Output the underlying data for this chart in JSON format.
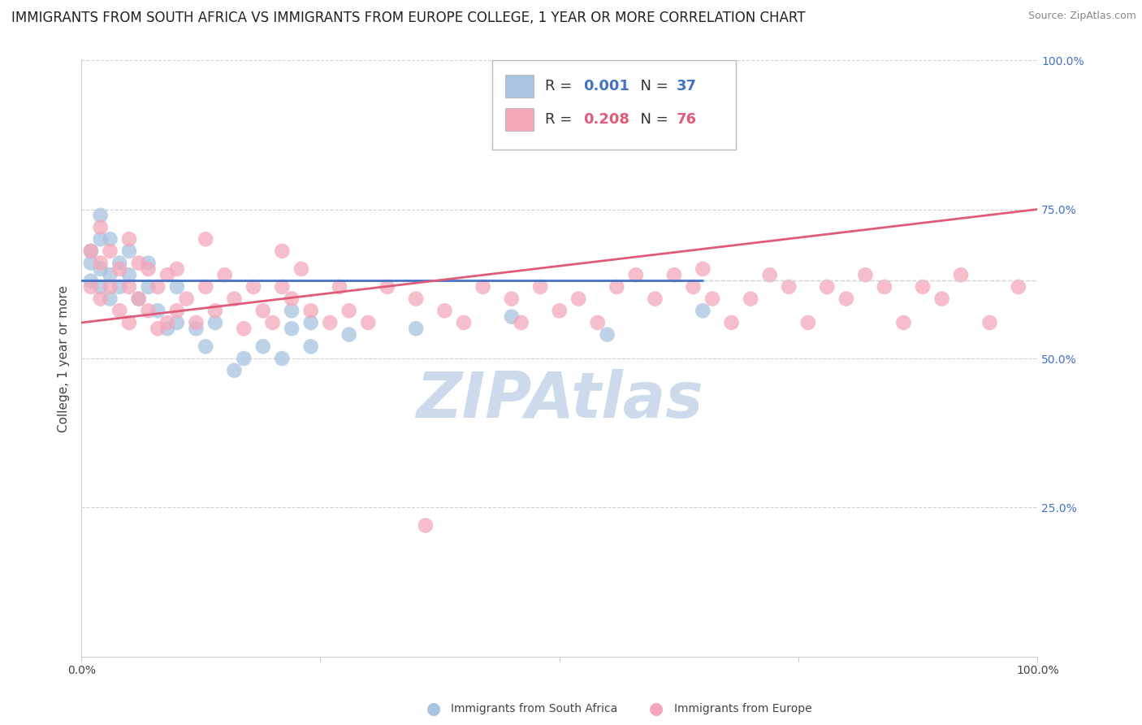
{
  "title": "IMMIGRANTS FROM SOUTH AFRICA VS IMMIGRANTS FROM EUROPE COLLEGE, 1 YEAR OR MORE CORRELATION CHART",
  "source": "Source: ZipAtlas.com",
  "ylabel": "College, 1 year or more",
  "legend_label_blue": "Immigrants from South Africa",
  "legend_label_pink": "Immigrants from Europe",
  "R_blue": 0.001,
  "N_blue": 37,
  "R_pink": 0.208,
  "N_pink": 76,
  "color_blue": "#a8c4e0",
  "color_pink": "#f4a7b9",
  "line_color_blue": "#4472c4",
  "line_color_pink": "#e05a7a",
  "color_blue_label": "#4472c4",
  "color_pink_label": "#e05a7a",
  "watermark": "ZIPAtlas",
  "xlim": [
    0,
    1
  ],
  "ylim": [
    0,
    1
  ],
  "x_ticks": [
    0.0,
    0.25,
    0.5,
    0.75,
    1.0
  ],
  "x_tick_labels": [
    "0.0%",
    "",
    "",
    "",
    "100.0%"
  ],
  "y_ticks_right": [
    0.25,
    0.5,
    0.75,
    1.0
  ],
  "y_tick_labels_right": [
    "25.0%",
    "50.0%",
    "75.0%",
    "100.0%"
  ],
  "scatter_blue_x": [
    0.01,
    0.01,
    0.01,
    0.02,
    0.02,
    0.02,
    0.02,
    0.03,
    0.03,
    0.03,
    0.04,
    0.04,
    0.05,
    0.05,
    0.06,
    0.07,
    0.07,
    0.08,
    0.09,
    0.1,
    0.1,
    0.12,
    0.13,
    0.14,
    0.16,
    0.17,
    0.19,
    0.21,
    0.22,
    0.22,
    0.24,
    0.24,
    0.28,
    0.35,
    0.45,
    0.55,
    0.65
  ],
  "scatter_blue_y": [
    0.63,
    0.66,
    0.68,
    0.62,
    0.65,
    0.7,
    0.74,
    0.6,
    0.64,
    0.7,
    0.62,
    0.66,
    0.64,
    0.68,
    0.6,
    0.62,
    0.66,
    0.58,
    0.55,
    0.62,
    0.56,
    0.55,
    0.52,
    0.56,
    0.48,
    0.5,
    0.52,
    0.5,
    0.55,
    0.58,
    0.56,
    0.52,
    0.54,
    0.55,
    0.57,
    0.54,
    0.58
  ],
  "scatter_pink_x": [
    0.01,
    0.01,
    0.02,
    0.02,
    0.02,
    0.03,
    0.03,
    0.04,
    0.04,
    0.05,
    0.05,
    0.05,
    0.06,
    0.06,
    0.07,
    0.07,
    0.08,
    0.08,
    0.09,
    0.09,
    0.1,
    0.1,
    0.11,
    0.12,
    0.13,
    0.13,
    0.14,
    0.15,
    0.16,
    0.17,
    0.18,
    0.19,
    0.2,
    0.21,
    0.21,
    0.22,
    0.23,
    0.24,
    0.26,
    0.27,
    0.28,
    0.3,
    0.32,
    0.35,
    0.36,
    0.38,
    0.4,
    0.42,
    0.45,
    0.46,
    0.48,
    0.5,
    0.52,
    0.54,
    0.56,
    0.58,
    0.6,
    0.62,
    0.64,
    0.65,
    0.66,
    0.68,
    0.7,
    0.72,
    0.74,
    0.76,
    0.78,
    0.8,
    0.82,
    0.84,
    0.86,
    0.88,
    0.9,
    0.92,
    0.95,
    0.98
  ],
  "scatter_pink_y": [
    0.62,
    0.68,
    0.6,
    0.66,
    0.72,
    0.62,
    0.68,
    0.58,
    0.65,
    0.56,
    0.62,
    0.7,
    0.6,
    0.66,
    0.58,
    0.65,
    0.55,
    0.62,
    0.56,
    0.64,
    0.58,
    0.65,
    0.6,
    0.56,
    0.62,
    0.7,
    0.58,
    0.64,
    0.6,
    0.55,
    0.62,
    0.58,
    0.56,
    0.62,
    0.68,
    0.6,
    0.65,
    0.58,
    0.56,
    0.62,
    0.58,
    0.56,
    0.62,
    0.6,
    0.22,
    0.58,
    0.56,
    0.62,
    0.6,
    0.56,
    0.62,
    0.58,
    0.6,
    0.56,
    0.62,
    0.64,
    0.6,
    0.64,
    0.62,
    0.65,
    0.6,
    0.56,
    0.6,
    0.64,
    0.62,
    0.56,
    0.62,
    0.6,
    0.64,
    0.62,
    0.56,
    0.62,
    0.6,
    0.64,
    0.56,
    0.62
  ],
  "blue_line_x0": 0.0,
  "blue_line_x1": 0.65,
  "blue_line_y": 0.631,
  "pink_line_x0": 0.0,
  "pink_line_x1": 1.0,
  "pink_line_y0": 0.56,
  "pink_line_y1": 0.75,
  "background_color": "#ffffff",
  "grid_color": "#d0d0d0",
  "title_fontsize": 12,
  "axis_label_fontsize": 11,
  "tick_fontsize": 10,
  "legend_fontsize": 13,
  "watermark_color": "#ccdaeb",
  "watermark_fontsize": 56
}
